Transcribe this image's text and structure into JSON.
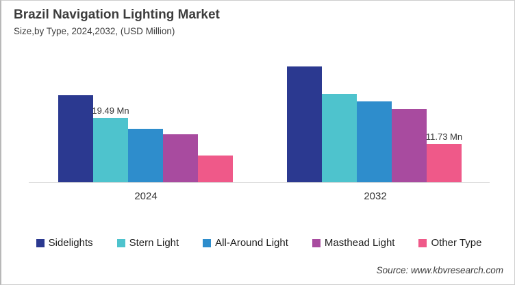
{
  "header": {
    "title": "Brazil Navigation Lighting Market",
    "subtitle": "Size,by Type, 2024,2032, (USD Million)"
  },
  "source": "Source: www.kbvresearch.com",
  "colors": {
    "sidelights": "#2B3990",
    "stern_light": "#4EC3CD",
    "all_around_light": "#2E8DCC",
    "masthead_light": "#A84B9F",
    "other_type": "#EF5989",
    "axis_line": "#DCDCDC",
    "text": "#3D3D3D"
  },
  "chart_data": {
    "type": "bar",
    "title": "Brazil Navigation Lighting Market",
    "subtitle": "Size,by Type, 2024,2032, (USD Million)",
    "unit": "USD Million",
    "categories": [
      "2024",
      "2032"
    ],
    "series": [
      {
        "name": "Sidelights",
        "color": "#2B3990",
        "values": [
          26.4,
          35.2
        ]
      },
      {
        "name": "Stern Light",
        "color": "#4EC3CD",
        "values": [
          19.49,
          26.9
        ]
      },
      {
        "name": "All-Around Light",
        "color": "#2E8DCC",
        "values": [
          16.3,
          24.6
        ]
      },
      {
        "name": "Masthead Light",
        "color": "#A84B9F",
        "values": [
          14.6,
          22.2
        ]
      },
      {
        "name": "Other Type",
        "color": "#EF5989",
        "values": [
          8.1,
          11.73
        ]
      }
    ],
    "data_labels": [
      {
        "category_index": 0,
        "series_index": 1,
        "text": "19.49 Mn"
      },
      {
        "category_index": 1,
        "series_index": 4,
        "text": "11.73 Mn"
      }
    ],
    "ylim": [
      0,
      40
    ],
    "gridlines": false,
    "legend_position": "bottom"
  }
}
